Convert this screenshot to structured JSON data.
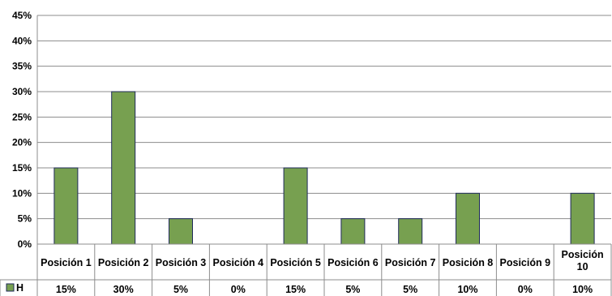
{
  "chart_data": {
    "type": "bar",
    "categories": [
      "Posición 1",
      "Posición 2",
      "Posición 3",
      "Posición 4",
      "Posición 5",
      "Posición 6",
      "Posición 7",
      "Posición 8",
      "Posición 9",
      "Posición 10"
    ],
    "series": [
      {
        "name": "H",
        "values": [
          15,
          30,
          5,
          0,
          15,
          5,
          5,
          10,
          0,
          10
        ],
        "color": "#77a050"
      }
    ],
    "table_values": [
      "15%",
      "30%",
      "5%",
      "0%",
      "15%",
      "5%",
      "5%",
      "10%",
      "0%",
      "10%"
    ],
    "ylim": [
      0,
      45
    ],
    "yticks": [
      0,
      5,
      10,
      15,
      20,
      25,
      30,
      35,
      40,
      45
    ],
    "ytick_labels": [
      "0%",
      "5%",
      "10%",
      "15%",
      "20%",
      "25%",
      "30%",
      "35%",
      "40%",
      "45%"
    ],
    "grid": true,
    "legend": "data-table-row",
    "bar_border_color": "#1f2a5a",
    "grid_color": "#8c8c8c"
  }
}
